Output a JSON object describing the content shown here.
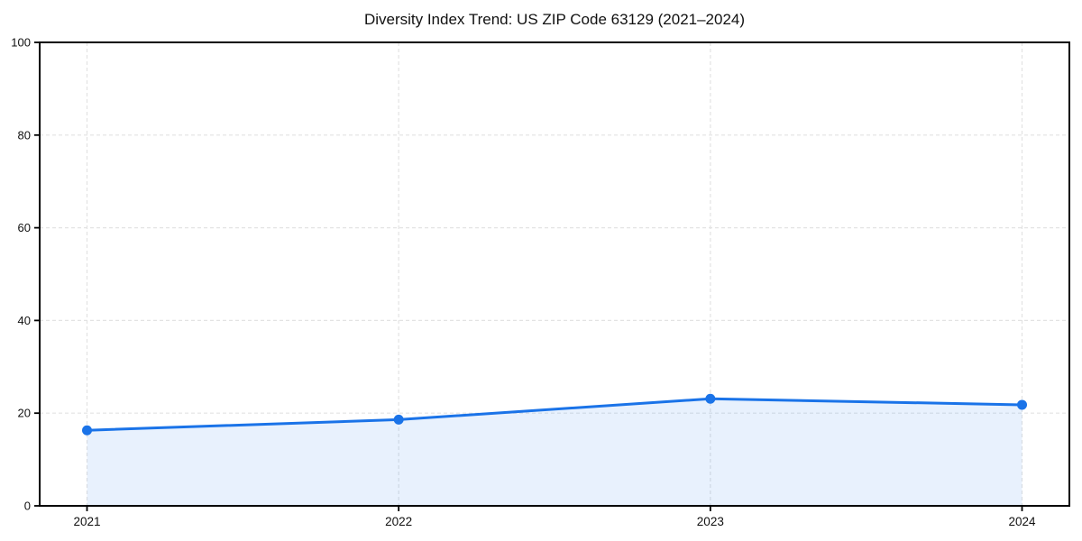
{
  "chart_data": {
    "type": "area",
    "title": "Diversity Index Trend: US ZIP Code 63129 (2021–2024)",
    "categories": [
      "2021",
      "2022",
      "2023",
      "2024"
    ],
    "series": [
      {
        "name": "Diversity Index",
        "values": [
          16.3,
          18.6,
          23.1,
          21.8
        ]
      }
    ],
    "xlabel": "",
    "ylabel": "",
    "ylim": [
      0,
      100
    ],
    "yticks": [
      0,
      20,
      40,
      60,
      80,
      100
    ],
    "grid": "dashed both axes",
    "legend_position": "none",
    "colors": {
      "line": "#1a73e8",
      "marker": "#1a73e8",
      "fill": "rgba(26,115,232,0.10)",
      "grid": "#e3e3e3",
      "spine": "#000000",
      "tick_label": "#111111",
      "background": "#ffffff"
    }
  }
}
